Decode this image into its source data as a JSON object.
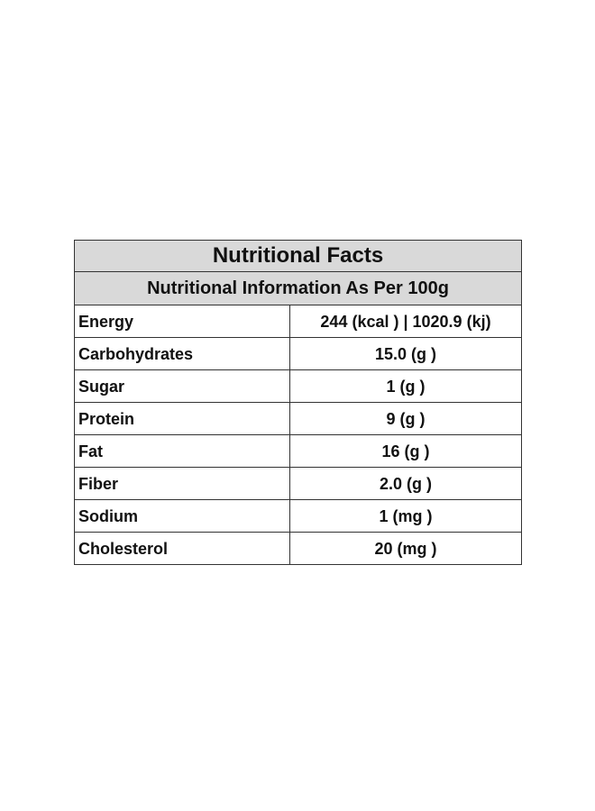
{
  "title": "Nutritional Facts",
  "subtitle": "Nutritional Information As Per 100g",
  "rows": [
    {
      "nutrient": "Energy",
      "amount": "244 (kcal ) | 1020.9 (kj)"
    },
    {
      "nutrient": "Carbohydrates",
      "amount": "15.0 (g )"
    },
    {
      "nutrient": "Sugar",
      "amount": "1 (g )"
    },
    {
      "nutrient": "Protein",
      "amount": "9 (g )"
    },
    {
      "nutrient": "Fat",
      "amount": "16 (g )"
    },
    {
      "nutrient": "Fiber",
      "amount": "2.0 (g )"
    },
    {
      "nutrient": "Sodium",
      "amount": "1 (mg )"
    },
    {
      "nutrient": "Cholesterol",
      "amount": "20 (mg )"
    }
  ]
}
